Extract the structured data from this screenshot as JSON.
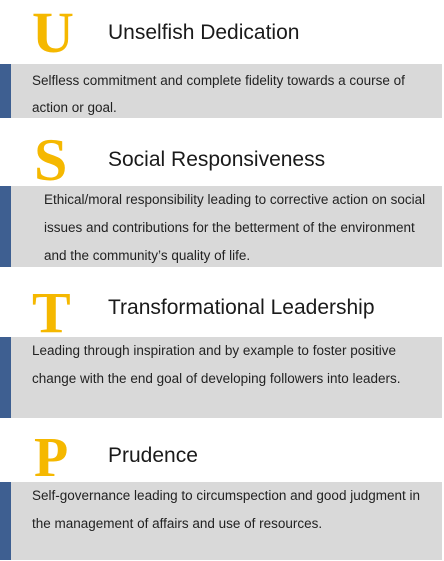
{
  "values": [
    {
      "letter": "U",
      "title": "Unselfish Dedication",
      "description": "Selfless commitment and complete fidelity towards a course of action or goal."
    },
    {
      "letter": "S",
      "title": "Social Responsiveness",
      "description": "Ethical/moral responsibility leading to corrective action on social issues and contributions for the betterment of the environment and the community’s quality of life."
    },
    {
      "letter": "T",
      "title": "Transformational Leadership",
      "description": "Leading through inspiration and by example to foster positive change with the end goal of developing followers into leaders."
    },
    {
      "letter": "P",
      "title": "Prudence",
      "description": "Self-governance leading to circumspection and good judgment in the management of affairs and use of resources."
    }
  ],
  "colors": {
    "letter": "#f5b800",
    "accent_bar": "#3e5f91",
    "box_background": "#d9d9d9"
  }
}
